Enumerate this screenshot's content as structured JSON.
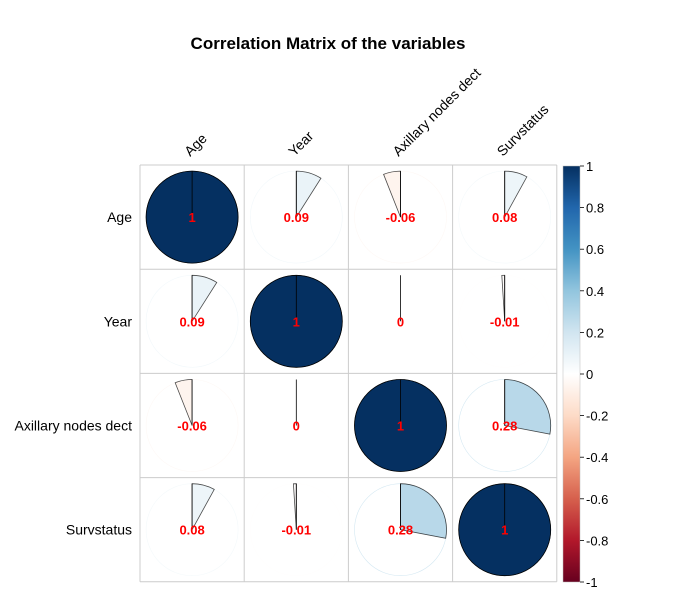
{
  "chart_data": {
    "type": "heatmap",
    "title": "Correlation Matrix of the variables",
    "variables": [
      "Age",
      "Year",
      "Axillary nodes dect",
      "Survstatus"
    ],
    "matrix": [
      [
        1,
        0.09,
        -0.06,
        0.08
      ],
      [
        0.09,
        1,
        0,
        -0.01
      ],
      [
        -0.06,
        0,
        1,
        0.28
      ],
      [
        0.08,
        -0.01,
        0.28,
        1
      ]
    ],
    "value_labels": [
      [
        "1",
        "0.09",
        "-0.06",
        "0.08"
      ],
      [
        "0.09",
        "1",
        "0",
        "-0.01"
      ],
      [
        "-0.06",
        "0",
        "1",
        "0.28"
      ],
      [
        "0.08",
        "-0.01",
        "0.28",
        "1"
      ]
    ],
    "method": "pie",
    "colorbar": {
      "range": [
        -1,
        1
      ],
      "ticks": [
        "1",
        "0.8",
        "0.6",
        "0.4",
        "0.2",
        "0",
        "-0.2",
        "-0.4",
        "-0.6",
        "-0.8",
        "-1"
      ],
      "colors": [
        "#67001F",
        "#B2182B",
        "#D6604D",
        "#F4A582",
        "#FDDBC7",
        "#FFFFFF",
        "#D1E5F0",
        "#92C5DE",
        "#4393C3",
        "#2166AC",
        "#053061"
      ]
    },
    "value_label_color": "#FF0000",
    "grid": true
  }
}
